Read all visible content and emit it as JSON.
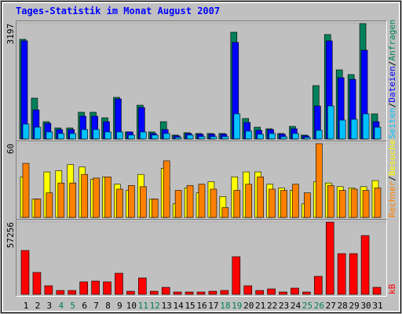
{
  "chart_data": {
    "type": "bar",
    "title": "Tages-Statistik im Monat August 2007",
    "categories": [
      "1",
      "2",
      "3",
      "4",
      "5",
      "6",
      "7",
      "8",
      "9",
      "10",
      "11",
      "12",
      "13",
      "14",
      "15",
      "16",
      "17",
      "18",
      "19",
      "20",
      "21",
      "22",
      "23",
      "24",
      "25",
      "26",
      "27",
      "28",
      "29",
      "30",
      "31"
    ],
    "category_colors": [
      "#000000",
      "#000000",
      "#000000",
      "#00805c",
      "#00805c",
      "#000000",
      "#000000",
      "#000000",
      "#000000",
      "#000000",
      "#00805c",
      "#00805c",
      "#000000",
      "#000000",
      "#000000",
      "#000000",
      "#000000",
      "#00805c",
      "#00805c",
      "#000000",
      "#000000",
      "#000000",
      "#000000",
      "#000000",
      "#00805c",
      "#00805c",
      "#000000",
      "#000000",
      "#000000",
      "#000000",
      "#000000"
    ],
    "separator": "/",
    "panels": [
      {
        "ylim": [
          0,
          3197
        ],
        "yticks": [
          3197
        ],
        "series": [
          {
            "name": "Anfragen",
            "color": "#00805c",
            "values": [
              2762,
              1131,
              479,
              305,
              305,
              740,
              740,
              587,
              1153,
              196,
              935,
              196,
              479,
              109,
              174,
              152,
              152,
              152,
              2958,
              566,
              326,
              283,
              152,
              348,
              109,
              1479,
              2893,
              1914,
              1784,
              3197,
              696
            ]
          },
          {
            "name": "Dateien",
            "color": "#0000ff",
            "values": [
              2719,
              805,
              435,
              261,
              261,
              631,
              631,
              479,
              1109,
              196,
              870,
              152,
              261,
              87,
              152,
              131,
              131,
              131,
              2675,
              457,
              239,
              261,
              131,
              283,
              87,
              914,
              2719,
              1697,
              1653,
              2458,
              479
            ]
          },
          {
            "name": "Seiten",
            "color": "#00c0ff",
            "values": [
              413,
              326,
              196,
              152,
              152,
              261,
              261,
              196,
              196,
              109,
              196,
              109,
              152,
              44,
              109,
              65,
              65,
              65,
              696,
              218,
              131,
              152,
              65,
              152,
              44,
              239,
              914,
              522,
              544,
              696,
              326
            ]
          }
        ]
      },
      {
        "ylim": [
          0,
          60
        ],
        "yticks": [
          60
        ],
        "series": [
          {
            "name": "Besuche",
            "color": "#ffff00",
            "values": [
              33,
              15,
              37,
              38,
              43,
              41,
              31,
              33,
              27,
              22,
              35,
              15,
              40,
              11,
              24,
              20,
              29,
              17,
              33,
              37,
              37,
              27,
              24,
              22,
              11,
              29,
              28,
              25,
              24,
              25,
              30
            ]
          },
          {
            "name": "Rechner",
            "color": "#ff8000",
            "values": [
              44,
              15,
              20,
              28,
              28,
              35,
              32,
              33,
              23,
              26,
              25,
              15,
              46,
              22,
              26,
              27,
              23,
              8,
              22,
              27,
              33,
              23,
              22,
              27,
              20,
              60,
              26,
              22,
              23,
              22,
              24
            ]
          }
        ]
      },
      {
        "ylim": [
          0,
          57256
        ],
        "yticks": [
          57256
        ],
        "series": [
          {
            "name": "kB",
            "color": "#ff0000",
            "values": [
              34830,
              17420,
              6840,
              3110,
              3110,
              9950,
              10570,
              9950,
              16790,
              2490,
              13060,
              2490,
              5600,
              1870,
              1870,
              1870,
              2490,
              3110,
              29860,
              6840,
              3110,
              4350,
              1870,
              4980,
              1870,
              14310,
              57256,
              32340,
              32340,
              46650,
              5600
            ]
          }
        ]
      }
    ]
  }
}
